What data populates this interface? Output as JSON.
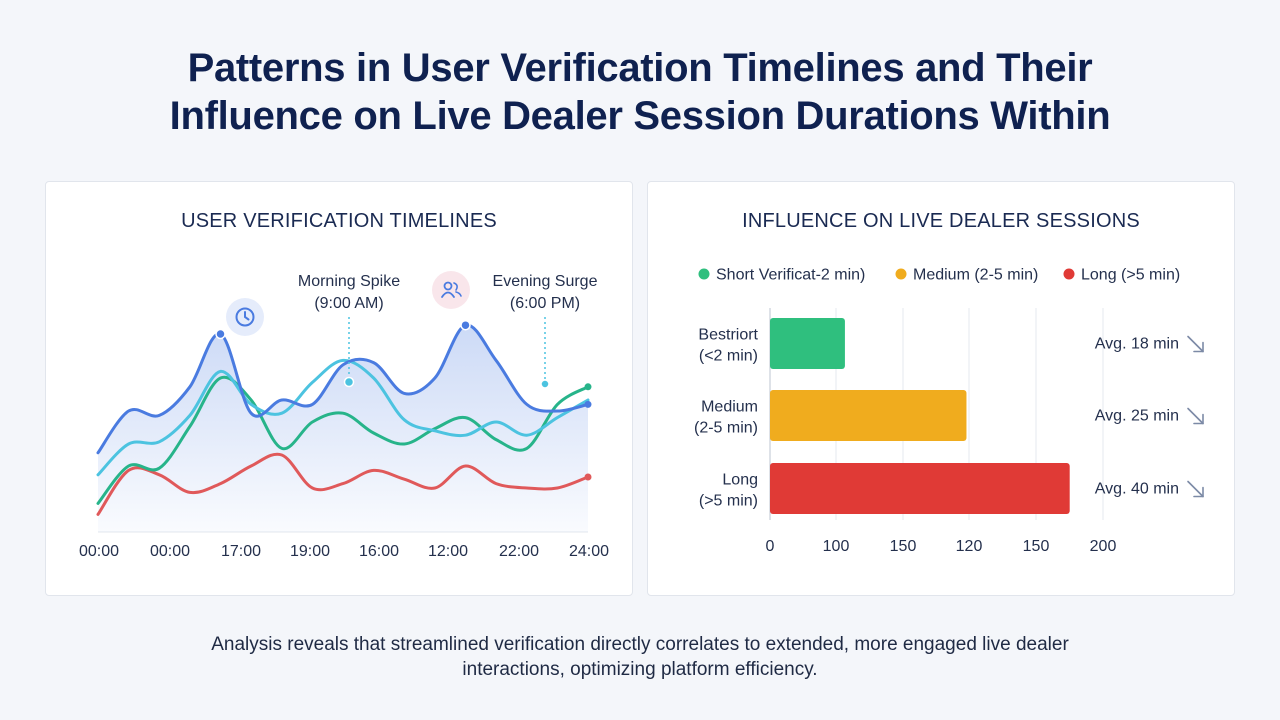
{
  "header": {
    "title_line1": "Patterns in User Verification Timelines and Their",
    "title_line2": "Influence on Live Dealer Session Durations Within"
  },
  "footer": {
    "line1": "Analysis reveals that streamlined verification directly correlates to extended, more engaged live dealer",
    "line2": "interactions, optimizing platform efficiency."
  },
  "colors": {
    "blue": "#4a7be0",
    "cyan": "#4cc3e0",
    "green": "#27b48a",
    "red": "#e0595a",
    "bar_green": "#2fbf7e",
    "bar_yellow": "#f0ac1e",
    "bar_red": "#e03a36",
    "icon_grey": "#7c8aa6"
  },
  "chart_data": [
    {
      "type": "line",
      "title": "USER VERIFICATION TIMELINES",
      "x_ticks": [
        "00:00",
        "00:00",
        "17:00",
        "19:00",
        "16:00",
        "12:00",
        "22:00",
        "24:00"
      ],
      "ylim": [
        0,
        100
      ],
      "grid": false,
      "series": [
        {
          "color_key": "blue",
          "fill": true,
          "values": [
            36,
            55,
            53,
            66,
            90,
            54,
            60,
            58,
            76,
            77,
            63,
            70,
            94,
            78,
            58,
            55,
            58
          ]
        },
        {
          "color_key": "cyan",
          "values": [
            26,
            40,
            41,
            53,
            73,
            58,
            54,
            68,
            78,
            70,
            51,
            46,
            44,
            50,
            44,
            52,
            60
          ]
        },
        {
          "color_key": "green",
          "values": [
            13,
            30,
            29,
            48,
            70,
            60,
            38,
            50,
            54,
            45,
            40,
            47,
            52,
            42,
            38,
            58,
            66
          ]
        },
        {
          "color_key": "red",
          "values": [
            8,
            28,
            26,
            18,
            22,
            30,
            35,
            20,
            22,
            28,
            24,
            20,
            30,
            22,
            20,
            20,
            25
          ]
        }
      ],
      "annotations": [
        {
          "label_line1": "Morning Spike",
          "label_line2": "(9:00 AM)"
        },
        {
          "label_line1": "Evening Surge",
          "label_line2": "(6:00 PM)"
        }
      ],
      "icons": [
        "clock-icon",
        "users-icon"
      ]
    },
    {
      "type": "bar",
      "orientation": "horizontal",
      "title": "INFLUENCE ON LIVE DEALER SESSIONS",
      "legend": [
        {
          "label": "Short Verificat-2 min)",
          "color_key": "bar_green"
        },
        {
          "label": "Medium (2-5 min)",
          "color_key": "bar_yellow"
        },
        {
          "label": "Long (>5 min)",
          "color_key": "bar_red"
        }
      ],
      "legend_position": "top",
      "categories": [
        {
          "line1": "Bestriort",
          "line2": "(<2 min)"
        },
        {
          "line1": "Medium",
          "line2": "(2-5 min)"
        },
        {
          "line1": "Long",
          "line2": "(>5 min)"
        }
      ],
      "values": [
        45,
        118,
        180
      ],
      "bar_color_keys": [
        "bar_green",
        "bar_yellow",
        "bar_red"
      ],
      "x_ticks": [
        "0",
        "100",
        "150",
        "120",
        "150",
        "200"
      ],
      "xlim": [
        0,
        200
      ],
      "grid": true,
      "averages": [
        "Avg. 18 min",
        "Avg. 25 min",
        "Avg. 40 min"
      ],
      "trend_icon": "arrow-down-right-icon"
    }
  ]
}
